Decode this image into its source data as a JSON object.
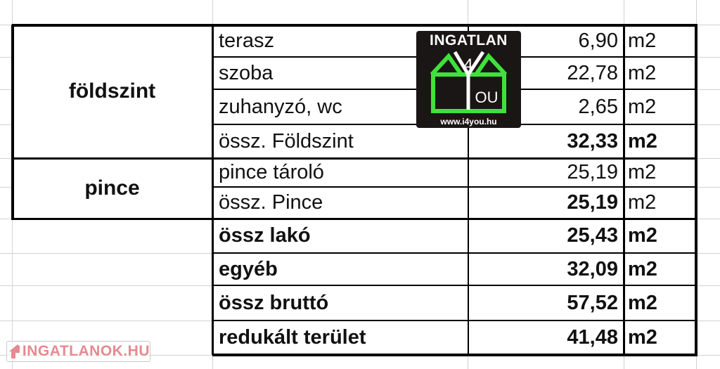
{
  "groups": [
    {
      "label": "földszint"
    },
    {
      "label": "pince"
    }
  ],
  "rows": [
    {
      "label": "terasz",
      "value": "6,90",
      "unit": "m2",
      "label_bold": false,
      "value_bold": false,
      "unit_bold": false
    },
    {
      "label": "szoba",
      "value": "22,78",
      "unit": "m2",
      "label_bold": false,
      "value_bold": false,
      "unit_bold": false
    },
    {
      "label": "zuhanyzó, wc",
      "value": "2,65",
      "unit": "m2",
      "label_bold": false,
      "value_bold": false,
      "unit_bold": false
    },
    {
      "label": "össz. Földszint",
      "value": "32,33",
      "unit": "m2",
      "label_bold": false,
      "value_bold": true,
      "unit_bold": true
    },
    {
      "label": "pince tároló",
      "value": "25,19",
      "unit": "m2",
      "label_bold": false,
      "value_bold": false,
      "unit_bold": false
    },
    {
      "label": "össz. Pince",
      "value": "25,19",
      "unit": "m2",
      "label_bold": false,
      "value_bold": true,
      "unit_bold": false
    },
    {
      "label": "össz lakó",
      "value": "25,43",
      "unit": "m2",
      "label_bold": true,
      "value_bold": true,
      "unit_bold": true
    },
    {
      "label": "egyéb",
      "value": "32,09",
      "unit": "m2",
      "label_bold": true,
      "value_bold": true,
      "unit_bold": true
    },
    {
      "label": "össz bruttó",
      "value": "57,52",
      "unit": "m2",
      "label_bold": true,
      "value_bold": true,
      "unit_bold": true
    },
    {
      "label": "redukált terület",
      "value": "41,48",
      "unit": "m2",
      "label_bold": true,
      "value_bold": true,
      "unit_bold": true
    }
  ],
  "logo": {
    "title": "INGATLAN",
    "digit": "4",
    "you": "OU",
    "url": "www.i4you.hu",
    "accent": "#3ee23a"
  },
  "watermark": {
    "text": "INGATLANOK.HU",
    "color": "#e58a90"
  }
}
